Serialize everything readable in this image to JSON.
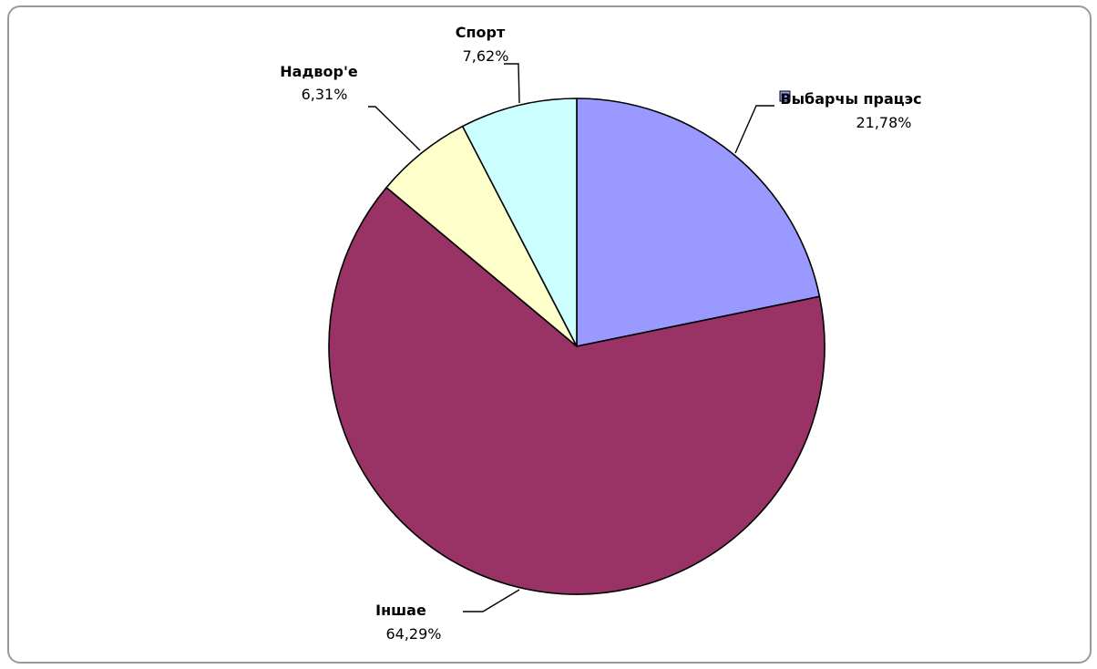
{
  "chart_data": {
    "type": "pie",
    "slices": [
      {
        "label": "Выбарчы працэс",
        "value": 21.78,
        "value_label": "21,78%",
        "color": "#9999ff",
        "legend_key": true
      },
      {
        "label": "Іншае",
        "value": 64.29,
        "value_label": "64,29%",
        "color": "#993366",
        "legend_key": false
      },
      {
        "label": "Надвор'е",
        "value": 6.31,
        "value_label": "6,31%",
        "color": "#ffffcc",
        "legend_key": false
      },
      {
        "label": "Спорт",
        "value": 7.62,
        "value_label": "7,62%",
        "color": "#ccffff",
        "legend_key": false
      }
    ],
    "start_angle": "12 o'clock",
    "direction": "clockwise",
    "border_color": "#000000",
    "frame_color": "#9a9a9a"
  }
}
